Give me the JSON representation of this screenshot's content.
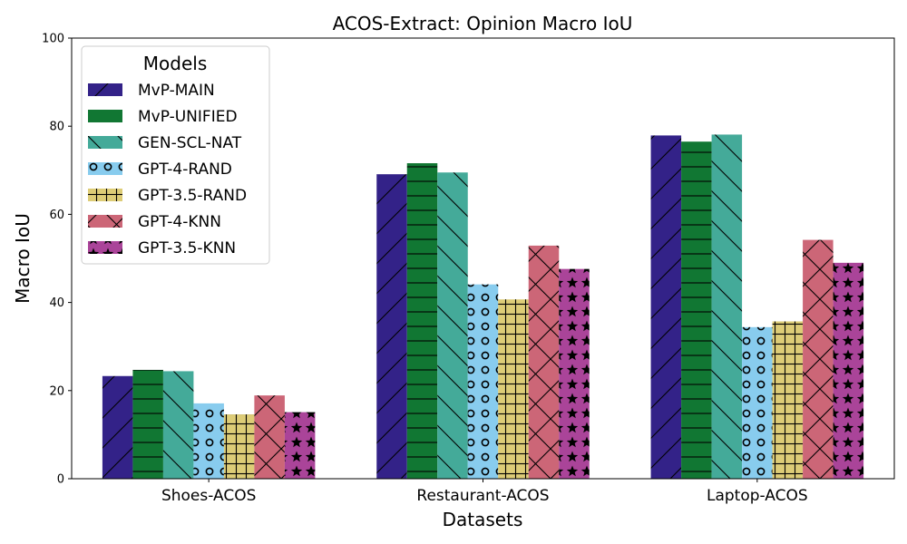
{
  "chart_data": {
    "type": "bar",
    "title": "ACOS-Extract: Opinion Macro IoU",
    "xlabel": "Datasets",
    "ylabel": "Macro IoU",
    "ylim": [
      0,
      100
    ],
    "yticks": [
      0,
      20,
      40,
      60,
      80,
      100
    ],
    "grid": false,
    "categories": [
      "Shoes-ACOS",
      "Restaurant-ACOS",
      "Laptop-ACOS"
    ],
    "legend": {
      "title": "Models",
      "placement": "top-left"
    },
    "series": [
      {
        "name": "MvP-MAIN",
        "values": [
          23.3,
          69.1,
          77.9
        ],
        "color": "#332288",
        "hatch": "diagonal-forward"
      },
      {
        "name": "MvP-UNIFIED",
        "values": [
          24.7,
          71.6,
          76.5
        ],
        "color": "#117733",
        "hatch": "horizontal"
      },
      {
        "name": "GEN-SCL-NAT",
        "values": [
          24.4,
          69.5,
          78.1
        ],
        "color": "#44AA99",
        "hatch": "diagonal-back"
      },
      {
        "name": "GPT-4-RAND",
        "values": [
          17.1,
          44.1,
          34.4
        ],
        "color": "#88CCEE",
        "hatch": "circles"
      },
      {
        "name": "GPT-3.5-RAND",
        "values": [
          14.6,
          40.7,
          35.7
        ],
        "color": "#DDCC77",
        "hatch": "grid"
      },
      {
        "name": "GPT-4-KNN",
        "values": [
          18.9,
          52.9,
          54.2
        ],
        "color": "#CC6677",
        "hatch": "crosshatch"
      },
      {
        "name": "GPT-3.5-KNN",
        "values": [
          15.1,
          47.6,
          49.0
        ],
        "color": "#AA4499",
        "hatch": "stars"
      }
    ]
  }
}
